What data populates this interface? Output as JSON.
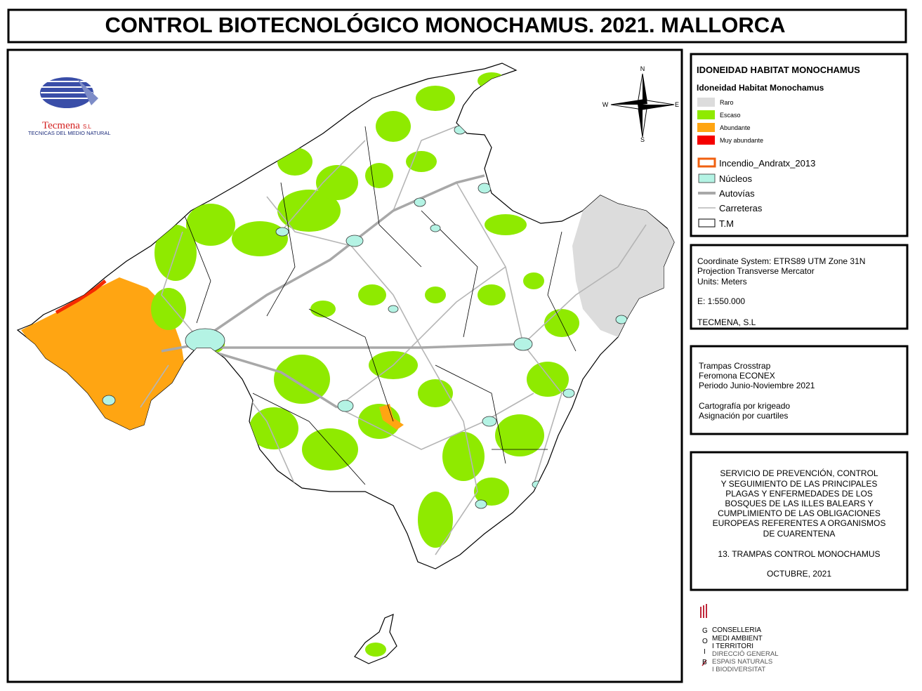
{
  "title": "CONTROL BIOTECNOLÓGICO MONOCHAMUS. 2021. MALLORCA",
  "logo": {
    "name": "Tecmena",
    "suffix": "S.L",
    "tagline": "TECNICAS DEL MEDIO NATURAL"
  },
  "compass": {
    "n": "N",
    "s": "S",
    "w": "W",
    "e": "E"
  },
  "legend": {
    "title": "IDONEIDAD HABITAT MONOCHAMUS",
    "subtitle": "Idoneidad Habitat Monochamus",
    "classes": [
      "Raro",
      "Escaso",
      "Abundante",
      "Muy abundante"
    ],
    "layers": [
      "Incendio_Andratx_2013",
      "Núcleos",
      "Autovías",
      "Carreteras",
      "T.M"
    ]
  },
  "coordinates": [
    "Coordinate System: ETRS89 UTM Zone 31N",
    "Projection Transverse Mercator",
    "Units: Meters",
    "E: 1:550.000",
    "TECMENA, S.L"
  ],
  "method": [
    "Trampas Crosstrap",
    "Feromona ECONEX",
    "Periodo Junio-Noviembre 2021",
    "Cartografía por krigeado",
    "Asignación por cuartiles"
  ],
  "service": {
    "description": [
      "SERVICIO DE PREVENCIÓN, CONTROL",
      "Y SEGUIMIENTO DE LAS PRINCIPALES",
      "PLAGAS Y ENFERMEDADES DE LOS",
      "BOSQUES DE LAS ILLES BALEARS Y",
      "CUMPLIMIENTO DE LAS OBLIGACIONES",
      "EUROPEAS REFERENTES A ORGANISMOS",
      "DE CUARENTENA"
    ],
    "map_title": "13. TRAMPAS CONTROL MONOCHAMUS",
    "date": "OCTUBRE, 2021"
  },
  "goib": {
    "letters": [
      "G",
      "O",
      "I",
      "B"
    ],
    "lines": [
      "CONSELLERIA",
      "MEDI AMBIENT",
      "I TERRITORI",
      "DIRECCIÓ GENERAL",
      "ESPAIS NATURALS",
      "I BIODIVERSITAT"
    ]
  }
}
